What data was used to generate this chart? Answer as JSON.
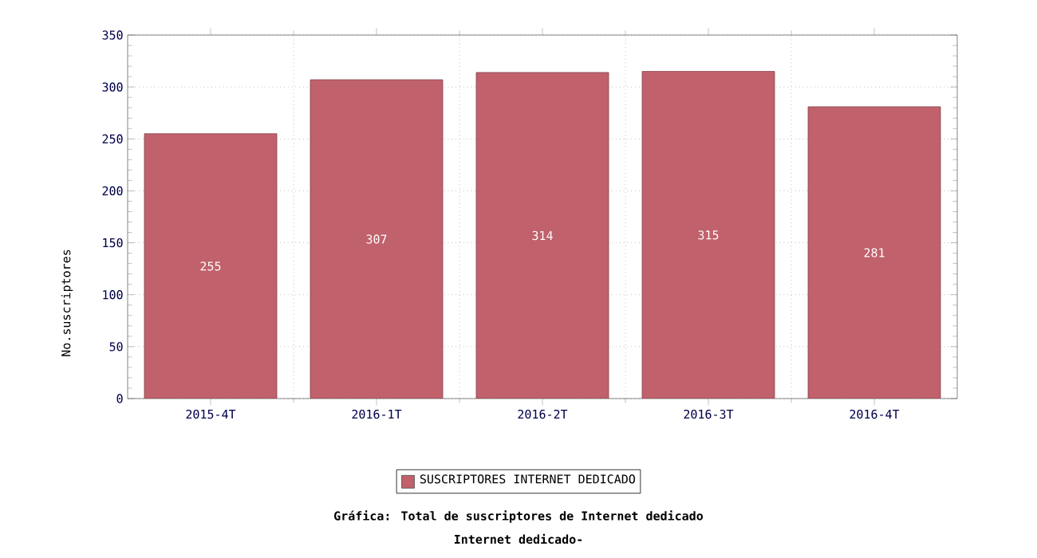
{
  "chart_data": {
    "type": "bar",
    "title": "Gráfica: Total de suscriptores de Internet dedicado",
    "subtitle": "Internet dedicado-",
    "ylabel": "No.suscriptores",
    "categories": [
      "2015-4T",
      "2016-1T",
      "2016-2T",
      "2016-3T",
      "2016-4T"
    ],
    "series": [
      {
        "name": "SUSCRIPTORES INTERNET DEDICADO",
        "color": "#c0616b",
        "values": [
          255,
          307,
          314,
          315,
          281
        ]
      }
    ],
    "ylim": [
      0,
      350
    ],
    "yticks": [
      0,
      50,
      100,
      150,
      200,
      250,
      300,
      350
    ],
    "grid": true,
    "legend": "bottom",
    "data_labels": true
  }
}
